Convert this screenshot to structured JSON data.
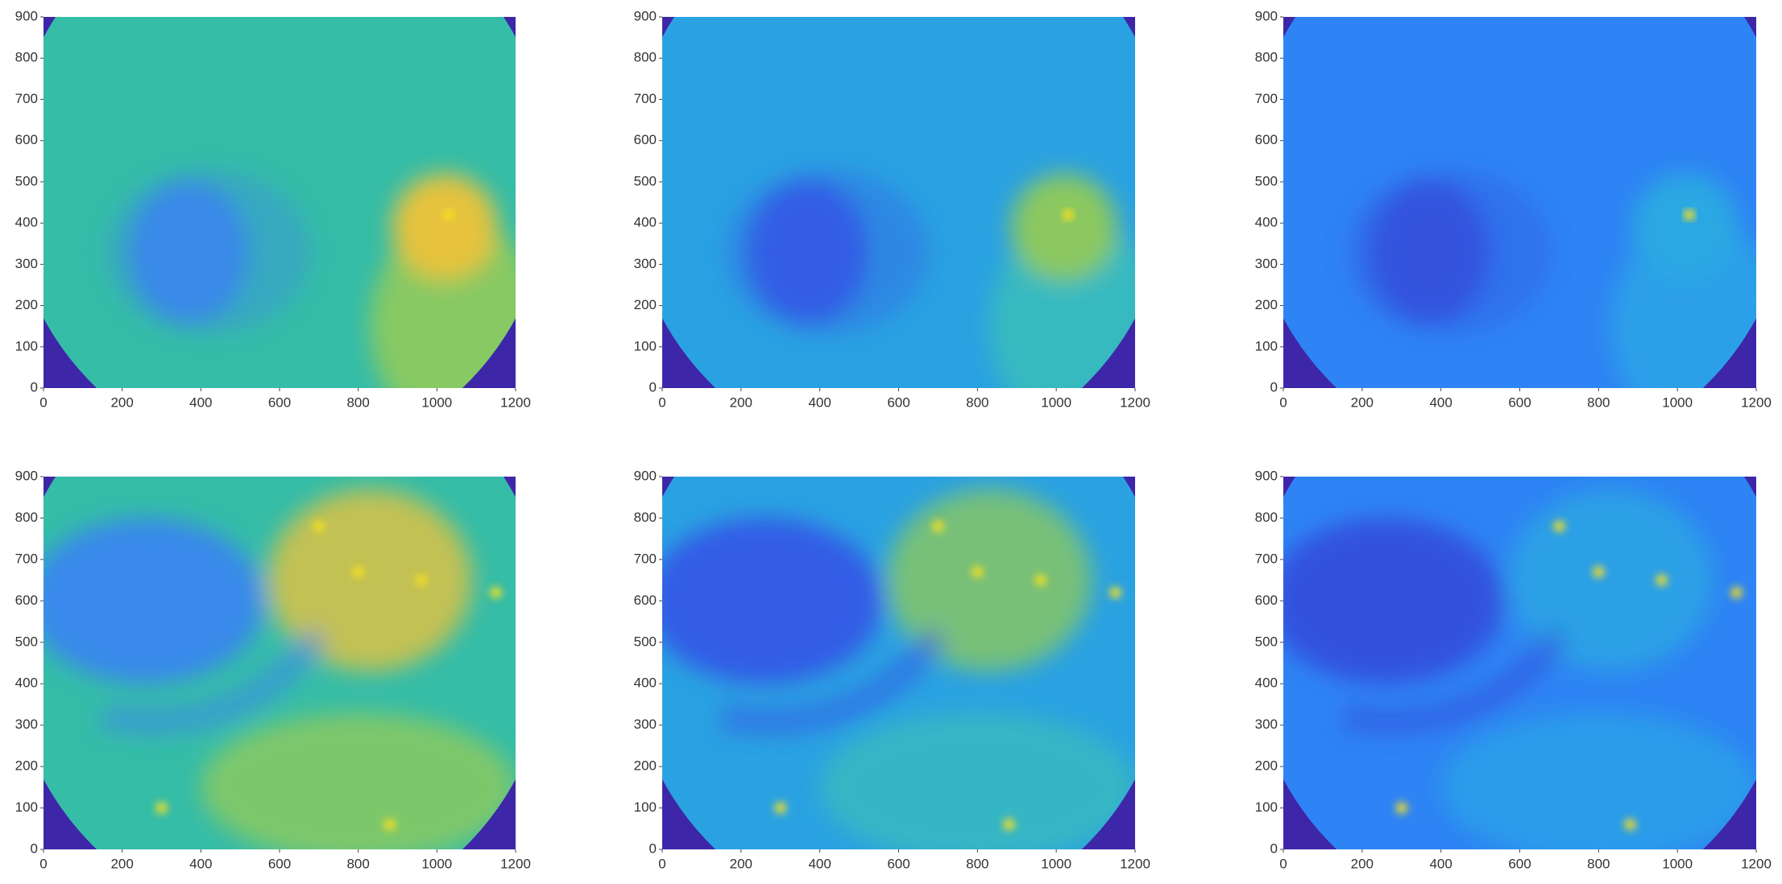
{
  "chart_data": [
    {
      "type": "image",
      "xlim": [
        0,
        1200
      ],
      "ylim": [
        0,
        900
      ],
      "xticks": [
        0,
        200,
        400,
        600,
        800,
        1000,
        1200
      ],
      "yticks": [
        0,
        100,
        200,
        300,
        400,
        500,
        600,
        700,
        800,
        900
      ]
    },
    {
      "type": "image",
      "xlim": [
        0,
        1200
      ],
      "ylim": [
        0,
        900
      ],
      "xticks": [
        0,
        200,
        400,
        600,
        800,
        1000,
        1200
      ],
      "yticks": [
        0,
        100,
        200,
        300,
        400,
        500,
        600,
        700,
        800,
        900
      ]
    },
    {
      "type": "image",
      "xlim": [
        0,
        1200
      ],
      "ylim": [
        0,
        900
      ],
      "xticks": [
        0,
        200,
        400,
        600,
        800,
        1000,
        1200
      ],
      "yticks": [
        0,
        100,
        200,
        300,
        400,
        500,
        600,
        700,
        800,
        900
      ]
    },
    {
      "type": "image",
      "xlim": [
        0,
        1200
      ],
      "ylim": [
        0,
        900
      ],
      "xticks": [
        0,
        200,
        400,
        600,
        800,
        1000,
        1200
      ],
      "yticks": [
        0,
        100,
        200,
        300,
        400,
        500,
        600,
        700,
        800,
        900
      ]
    },
    {
      "type": "image",
      "xlim": [
        0,
        1200
      ],
      "ylim": [
        0,
        900
      ],
      "xticks": [
        0,
        200,
        400,
        600,
        800,
        1000,
        1200
      ],
      "yticks": [
        0,
        100,
        200,
        300,
        400,
        500,
        600,
        700,
        800,
        900
      ]
    },
    {
      "type": "image",
      "xlim": [
        0,
        1200
      ],
      "ylim": [
        0,
        900
      ],
      "xticks": [
        0,
        200,
        400,
        600,
        800,
        1000,
        1200
      ],
      "yticks": [
        0,
        100,
        200,
        300,
        400,
        500,
        600,
        700,
        800,
        900
      ]
    }
  ]
}
